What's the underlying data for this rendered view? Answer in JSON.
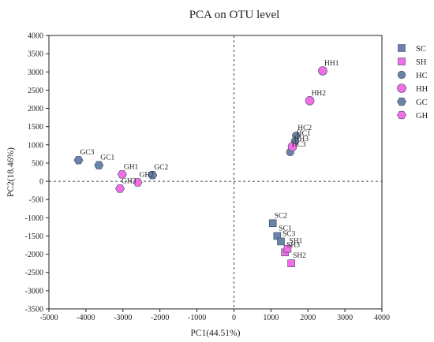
{
  "chart_data": {
    "type": "scatter",
    "title": "PCA on OTU level",
    "xlabel": "PC1(44.51%)",
    "ylabel": "PC2(18.46%)",
    "xlim": [
      -5000,
      4000
    ],
    "ylim": [
      -3500,
      4000
    ],
    "xticks": [
      -5000,
      -4000,
      -3000,
      -2000,
      -1000,
      0,
      1000,
      2000,
      3000,
      4000
    ],
    "yticks": [
      4000,
      3500,
      3000,
      2500,
      2000,
      1500,
      1000,
      500,
      0,
      -500,
      -1000,
      -1500,
      -2000,
      -2500,
      -3000,
      -3500
    ],
    "grid": false,
    "reference_lines": {
      "x": 0,
      "y": 0,
      "style": "dashed"
    },
    "legend_position": "right",
    "series": [
      {
        "name": "SC",
        "marker": "square",
        "color": "#6a84a8",
        "points": [
          {
            "label": "SC2",
            "x": 1050,
            "y": -1150
          },
          {
            "label": "SC1",
            "x": 1170,
            "y": -1500
          },
          {
            "label": "SC3",
            "x": 1270,
            "y": -1650
          }
        ]
      },
      {
        "name": "SH",
        "marker": "square",
        "color": "#f06ee6",
        "points": [
          {
            "label": "SH3",
            "x": 1380,
            "y": -1950
          },
          {
            "label": "SH1",
            "x": 1450,
            "y": -1850
          },
          {
            "label": "SH2",
            "x": 1550,
            "y": -2250
          }
        ]
      },
      {
        "name": "HC",
        "marker": "circle",
        "color": "#6a84a8",
        "points": [
          {
            "label": "HC2",
            "x": 1680,
            "y": 1250
          },
          {
            "label": "HC1",
            "x": 1650,
            "y": 1100
          },
          {
            "label": "HC3",
            "x": 1520,
            "y": 800
          }
        ]
      },
      {
        "name": "HH",
        "marker": "circle",
        "color": "#f06ee6",
        "points": [
          {
            "label": "HH1",
            "x": 2400,
            "y": 3030
          },
          {
            "label": "HH2",
            "x": 2050,
            "y": 2210
          },
          {
            "label": "HH3",
            "x": 1580,
            "y": 950
          }
        ]
      },
      {
        "name": "GC",
        "marker": "hexagon",
        "color": "#6a84a8",
        "points": [
          {
            "label": "GC3",
            "x": -4200,
            "y": 580
          },
          {
            "label": "GC1",
            "x": -3650,
            "y": 440
          },
          {
            "label": "GC2",
            "x": -2200,
            "y": 170
          }
        ]
      },
      {
        "name": "GH",
        "marker": "hexagon",
        "color": "#f06ee6",
        "points": [
          {
            "label": "GH1",
            "x": -3020,
            "y": 190
          },
          {
            "label": "GH2",
            "x": -2600,
            "y": -30
          },
          {
            "label": "GH3",
            "x": -3080,
            "y": -200
          }
        ]
      }
    ]
  }
}
